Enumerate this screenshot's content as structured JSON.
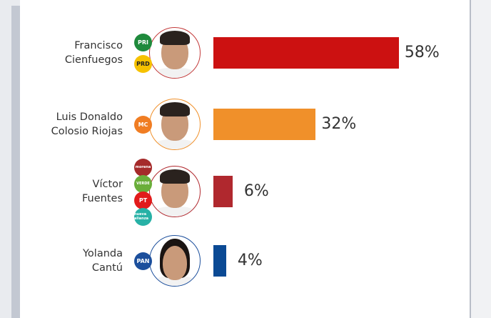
{
  "chart_data": {
    "type": "bar",
    "orientation": "horizontal",
    "title": "",
    "categories": [
      "Francisco Cienfuegos",
      "Luis Donaldo Colosio Riojas",
      "Víctor Fuentes",
      "Yolanda Cantú"
    ],
    "values": [
      58,
      32,
      6,
      4
    ],
    "value_labels": [
      "58%",
      "32%",
      "6%",
      "4%"
    ],
    "colors": [
      "#cc1111",
      "#f0902a",
      "#b0282e",
      "#0b4a94"
    ],
    "xlim": [
      0,
      100
    ],
    "grid": false
  },
  "candidates": [
    {
      "name_line1": "Francisco",
      "name_line2": "Cienfuegos",
      "ring": "#c33a3a",
      "parties": [
        {
          "label": "PRI",
          "color": "#1f8a3c"
        },
        {
          "label": "PRD",
          "color": "#f6c200"
        }
      ]
    },
    {
      "name_line1": "Luis Donaldo",
      "name_line2": "Colosio Riojas",
      "ring": "#f0902a",
      "parties": [
        {
          "label": "MC",
          "color": "#f07d23"
        }
      ]
    },
    {
      "name_line1": "Víctor",
      "name_line2": "Fuentes",
      "ring": "#b0282e",
      "parties": [
        {
          "label": "morena",
          "color": "#a52a2a"
        },
        {
          "label": "VERDE",
          "color": "#6aae3a"
        },
        {
          "label": "PT",
          "color": "#e21b1b"
        },
        {
          "label": "nueva alianza",
          "color": "#27b1a6"
        }
      ]
    },
    {
      "name_line1": "Yolanda",
      "name_line2": "Cantú",
      "ring": "#1c4f9c",
      "parties": [
        {
          "label": "PAN",
          "color": "#1c4f9c"
        }
      ]
    }
  ]
}
